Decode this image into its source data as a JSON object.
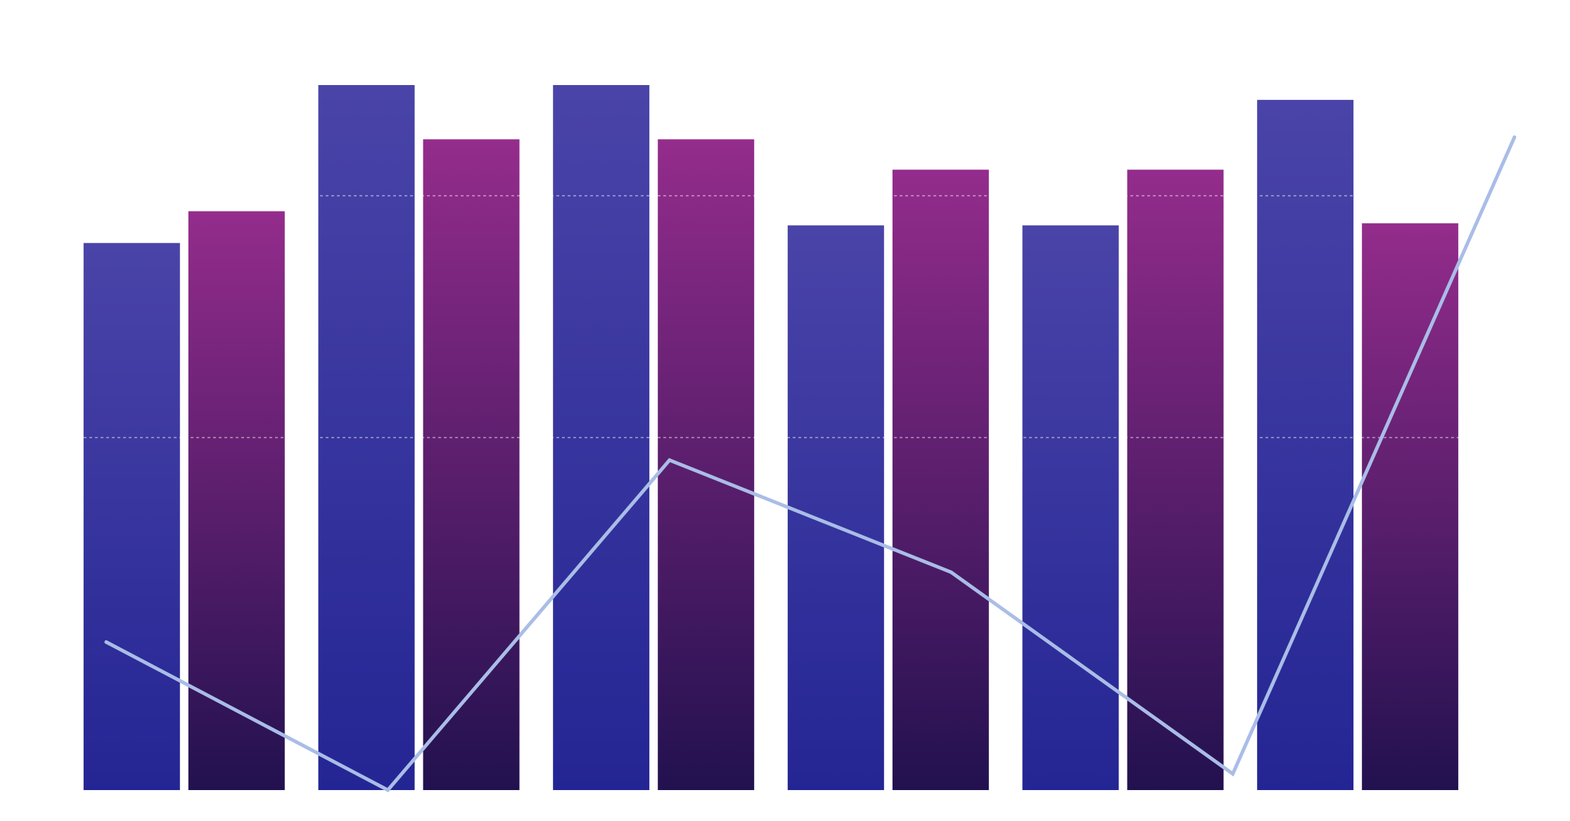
{
  "chart_data": {
    "type": "bar",
    "title": "",
    "xlabel": "",
    "ylabel": "",
    "categories": [
      "",
      "",
      "",
      "",
      "",
      ""
    ],
    "ylim": [
      0,
      100
    ],
    "grid": true,
    "gridlines": [
      50,
      84.3
    ],
    "series": [
      {
        "type": "bar",
        "color_top": "#4a44a8",
        "color_bottom": "#242594",
        "values": [
          77.6,
          100,
          100,
          80.1,
          80.1,
          97.9
        ]
      },
      {
        "type": "bar",
        "color_top": "#942c8c",
        "color_bottom": "#22114f",
        "values": [
          82.1,
          92.3,
          92.3,
          88.0,
          88.0,
          80.4
        ]
      },
      {
        "type": "line",
        "color": "#a9bde7",
        "values": [
          21.0,
          0,
          46.8,
          30.9,
          2.3,
          92.6
        ]
      }
    ]
  }
}
